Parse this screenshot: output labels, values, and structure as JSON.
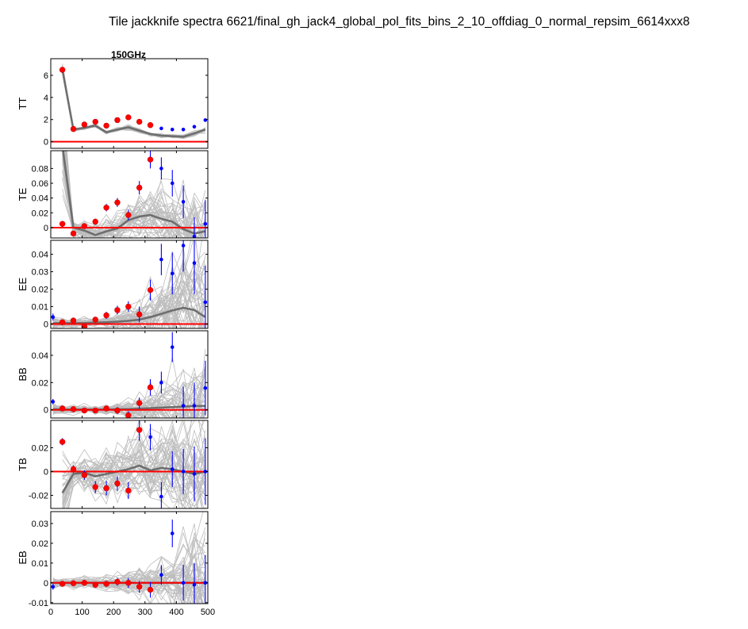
{
  "figure": {
    "suptitle": "Tile jackknife spectra 6621/final_gh_jack4_global_pol_fits_bins_2_10_offdiag_0_normal_repsim_6614xxx8",
    "column_title": "150GHz",
    "xlim": [
      0,
      500
    ],
    "xticks": [
      0,
      100,
      200,
      300,
      400,
      500
    ],
    "colors": {
      "sims": "#bdbdbd",
      "sim_mean": "#6e6e6e",
      "data_outside": "#0000ff",
      "data_used": "#ff0000",
      "zero_line": "#ff0000"
    }
  },
  "chart_data": [
    {
      "type": "scatter",
      "spectrum": "TT",
      "ylabel": "TT",
      "ylim": [
        -0.6,
        7.5
      ],
      "yticks": [
        0,
        2,
        4,
        6
      ],
      "yticklabels": [
        "0",
        "2",
        "4",
        "6"
      ],
      "x": [
        37,
        72,
        107,
        142,
        177,
        212,
        247,
        282,
        317,
        352,
        387,
        422,
        457,
        492
      ],
      "data": [
        6.5,
        1.15,
        1.55,
        1.8,
        1.45,
        1.95,
        2.2,
        1.8,
        1.5,
        1.2,
        1.1,
        1.1,
        1.35,
        1.95
      ],
      "err": [
        0.1,
        0.05,
        0.05,
        0.05,
        0.05,
        0.05,
        0.06,
        0.05,
        0.05,
        0.04,
        0.04,
        0.04,
        0.04,
        0.05
      ],
      "used": [
        1,
        1,
        1,
        1,
        1,
        1,
        1,
        1,
        1,
        0,
        0,
        0,
        0,
        0
      ],
      "sim_mean": [
        6.5,
        1.1,
        1.25,
        1.45,
        0.85,
        1.1,
        1.3,
        1.0,
        0.7,
        0.55,
        0.5,
        0.45,
        0.75,
        1.1
      ],
      "sim_spread": [
        0.2,
        0.05,
        0.06,
        0.06,
        0.05,
        0.06,
        0.08,
        0.08,
        0.07,
        0.07,
        0.07,
        0.07,
        0.08,
        0.1
      ]
    },
    {
      "type": "scatter",
      "spectrum": "TE",
      "ylabel": "TE",
      "ylim": [
        -0.014,
        0.104
      ],
      "yticks": [
        0,
        0.02,
        0.04,
        0.06,
        0.08
      ],
      "yticklabels": [
        "0",
        "0.02",
        "0.04",
        "0.06",
        "0.08"
      ],
      "x": [
        37,
        72,
        107,
        142,
        177,
        212,
        247,
        282,
        317,
        352,
        387,
        422,
        457,
        492
      ],
      "data": [
        0.005,
        -0.008,
        0.002,
        0.008,
        0.027,
        0.034,
        0.017,
        0.054,
        0.092,
        0.08,
        0.06,
        0.035,
        -0.012,
        0.005
      ],
      "err": [
        0.004,
        0.003,
        0.003,
        0.004,
        0.005,
        0.006,
        0.007,
        0.009,
        0.012,
        0.015,
        0.018,
        0.022,
        0.026,
        0.032
      ],
      "used": [
        1,
        1,
        1,
        1,
        1,
        1,
        1,
        1,
        1,
        0,
        0,
        0,
        0,
        0
      ],
      "sim_mean": [
        0.11,
        0.0,
        -0.004,
        -0.01,
        -0.005,
        -0.001,
        0.01,
        0.015,
        0.017,
        0.012,
        0.008,
        -0.002,
        -0.008,
        -0.005
      ],
      "sim_spread": [
        0.025,
        0.006,
        0.006,
        0.007,
        0.008,
        0.009,
        0.011,
        0.013,
        0.016,
        0.018,
        0.021,
        0.024,
        0.027,
        0.03
      ]
    },
    {
      "type": "scatter",
      "spectrum": "EE",
      "ylabel": "EE",
      "ylim": [
        -0.0025,
        0.048
      ],
      "yticks": [
        0,
        0.01,
        0.02,
        0.03,
        0.04
      ],
      "yticklabels": [
        "0",
        "0.01",
        "0.02",
        "0.03",
        "0.04"
      ],
      "x": [
        7,
        37,
        72,
        107,
        142,
        177,
        212,
        247,
        282,
        317,
        352,
        387,
        422,
        457,
        492
      ],
      "data": [
        0.004,
        0.001,
        0.002,
        -0.0015,
        0.0025,
        0.005,
        0.008,
        0.01,
        0.0055,
        0.0195,
        0.037,
        0.029,
        0.045,
        0.035,
        0.0125
      ],
      "err": [
        0.002,
        0.0015,
        0.0015,
        0.0015,
        0.0015,
        0.002,
        0.0025,
        0.003,
        0.0045,
        0.006,
        0.009,
        0.012,
        0.015,
        0.018,
        0.021
      ],
      "used": [
        0,
        1,
        1,
        1,
        1,
        1,
        1,
        1,
        1,
        1,
        0,
        0,
        0,
        0,
        0
      ],
      "sim_mean": [
        0.0005,
        0.0005,
        0.0005,
        0.0005,
        0.0008,
        0.001,
        0.0013,
        0.0018,
        0.0025,
        0.004,
        0.0058,
        0.0078,
        0.0093,
        0.008,
        0.004
      ],
      "sim_spread": [
        0.002,
        0.0012,
        0.0012,
        0.0012,
        0.0013,
        0.0016,
        0.002,
        0.0028,
        0.004,
        0.006,
        0.008,
        0.011,
        0.014,
        0.016,
        0.018
      ]
    },
    {
      "type": "scatter",
      "spectrum": "BB",
      "ylabel": "BB",
      "ylim": [
        -0.006,
        0.058
      ],
      "yticks": [
        0,
        0.02,
        0.04
      ],
      "yticklabels": [
        "0",
        "0.02",
        "0.04"
      ],
      "x": [
        7,
        37,
        72,
        107,
        142,
        177,
        212,
        247,
        282,
        317,
        352,
        387,
        422,
        457,
        492
      ],
      "data": [
        0.006,
        0.001,
        0.0005,
        -0.0005,
        -0.0005,
        0.001,
        -0.0005,
        -0.004,
        0.005,
        0.0165,
        0.02,
        0.046,
        0.003,
        0.003,
        0.016
      ],
      "err": [
        0.002,
        0.0015,
        0.0015,
        0.0015,
        0.0015,
        0.002,
        0.0025,
        0.003,
        0.004,
        0.006,
        0.008,
        0.011,
        0.014,
        0.017,
        0.02
      ],
      "used": [
        0,
        1,
        1,
        1,
        1,
        1,
        1,
        1,
        1,
        1,
        0,
        0,
        0,
        0,
        0
      ],
      "sim_mean": [
        0.0005,
        0.0003,
        0.0002,
        0.0002,
        0.0002,
        0.0003,
        0.0004,
        0.0005,
        0.0008,
        0.0012,
        0.0016,
        0.002,
        0.0024,
        0.0027,
        0.0029
      ],
      "sim_spread": [
        0.002,
        0.0012,
        0.0012,
        0.0012,
        0.0013,
        0.0016,
        0.002,
        0.0028,
        0.004,
        0.006,
        0.008,
        0.011,
        0.014,
        0.016,
        0.018
      ]
    },
    {
      "type": "scatter",
      "spectrum": "TB",
      "ylabel": "TB",
      "ylim": [
        -0.031,
        0.043
      ],
      "yticks": [
        -0.02,
        0,
        0.02
      ],
      "yticklabels": [
        "-0.02",
        "0",
        "0.02"
      ],
      "x": [
        37,
        72,
        107,
        142,
        177,
        212,
        247,
        282,
        317,
        352,
        387,
        422,
        457,
        492
      ],
      "data": [
        0.025,
        0.002,
        -0.003,
        -0.013,
        -0.014,
        -0.01,
        -0.016,
        0.035,
        0.029,
        -0.021,
        0.002,
        0.0,
        -0.002,
        0.0
      ],
      "err": [
        0.003,
        0.003,
        0.004,
        0.005,
        0.006,
        0.006,
        0.007,
        0.009,
        0.011,
        0.012,
        0.015,
        0.019,
        0.023,
        0.028
      ],
      "used": [
        1,
        1,
        1,
        1,
        1,
        1,
        1,
        1,
        0,
        0,
        0,
        0,
        0,
        0
      ],
      "sim_mean": [
        -0.018,
        -0.002,
        -0.001,
        -0.004,
        -0.002,
        0.0,
        0.002,
        0.005,
        0.001,
        0.003,
        0.002,
        0.0,
        -0.002,
        0.0
      ],
      "sim_spread": [
        0.015,
        0.006,
        0.007,
        0.008,
        0.009,
        0.01,
        0.011,
        0.012,
        0.013,
        0.015,
        0.017,
        0.02,
        0.022,
        0.025
      ]
    },
    {
      "type": "scatter",
      "spectrum": "EB",
      "ylabel": "EB",
      "ylim": [
        -0.0105,
        0.036
      ],
      "yticks": [
        -0.01,
        0,
        0.01,
        0.02,
        0.03
      ],
      "yticklabels": [
        "-0.01",
        "0",
        "0.01",
        "0.02",
        "0.03"
      ],
      "x": [
        7,
        37,
        72,
        107,
        142,
        177,
        212,
        247,
        282,
        317,
        352,
        387,
        422,
        457,
        492
      ],
      "data": [
        -0.002,
        -0.0005,
        -0.0002,
        0.0,
        -0.001,
        -0.0005,
        0.0005,
        0.0,
        -0.002,
        -0.0035,
        0.004,
        0.025,
        0.0,
        -0.001,
        0.0
      ],
      "err": [
        0.0015,
        0.001,
        0.001,
        0.001,
        0.0012,
        0.0015,
        0.002,
        0.0025,
        0.003,
        0.004,
        0.005,
        0.007,
        0.009,
        0.011,
        0.014
      ],
      "used": [
        0,
        1,
        1,
        1,
        1,
        1,
        1,
        1,
        1,
        1,
        0,
        0,
        0,
        0,
        0
      ],
      "sim_mean": [
        0.0,
        0.0,
        0.0,
        0.0,
        0.0,
        0.0,
        0.0,
        0.0,
        0.0,
        0.0,
        0.0,
        0.0,
        0.0,
        0.0,
        0.0
      ],
      "sim_spread": [
        0.0015,
        0.001,
        0.001,
        0.001,
        0.0012,
        0.0015,
        0.002,
        0.0025,
        0.003,
        0.004,
        0.005,
        0.007,
        0.009,
        0.011,
        0.014
      ]
    }
  ]
}
